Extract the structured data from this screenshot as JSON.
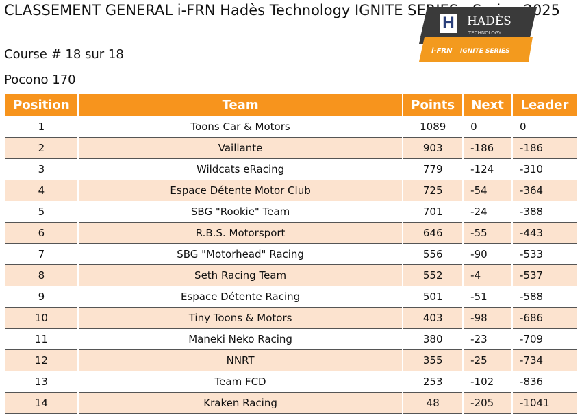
{
  "header": {
    "title": "CLASSEMENT GENERAL i-FRN Hadès Technology IGNITE SERIES - Spring 2025",
    "course": "Course # 18 sur 18",
    "track": "Pocono 170"
  },
  "logo": {
    "brand": "HADÈS",
    "sub": "TECHNOLOGY",
    "series_prefix": "i-FRN",
    "series": "IGNITE SERIES"
  },
  "table": {
    "columns": [
      "Position",
      "Team",
      "Points",
      "Next",
      "Leader"
    ],
    "rows": [
      [
        "1",
        "Toons Car & Motors",
        "1089",
        "0",
        "0"
      ],
      [
        "2",
        "Vaillante",
        "903",
        "-186",
        "-186"
      ],
      [
        "3",
        "Wildcats eRacing",
        "779",
        "-124",
        "-310"
      ],
      [
        "4",
        "Espace Détente Motor Club",
        "725",
        "-54",
        "-364"
      ],
      [
        "5",
        "SBG \"Rookie\" Team",
        "701",
        "-24",
        "-388"
      ],
      [
        "6",
        "R.B.S. Motorsport",
        "646",
        "-55",
        "-443"
      ],
      [
        "7",
        "SBG \"Motorhead\" Racing",
        "556",
        "-90",
        "-533"
      ],
      [
        "8",
        "Seth Racing Team",
        "552",
        "-4",
        "-537"
      ],
      [
        "9",
        "Espace Détente Racing",
        "501",
        "-51",
        "-588"
      ],
      [
        "10",
        "Tiny Toons & Motors",
        "403",
        "-98",
        "-686"
      ],
      [
        "11",
        "Maneki Neko Racing",
        "380",
        "-23",
        "-709"
      ],
      [
        "12",
        "NNRT",
        "355",
        "-25",
        "-734"
      ],
      [
        "13",
        "Team FCD",
        "253",
        "-102",
        "-836"
      ],
      [
        "14",
        "Kraken Racing",
        "48",
        "-205",
        "-1041"
      ]
    ]
  }
}
